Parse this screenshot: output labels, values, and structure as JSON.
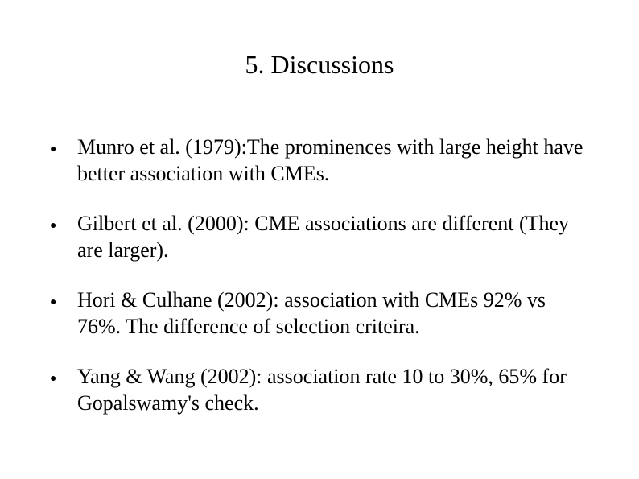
{
  "slide": {
    "title": "5. Discussions",
    "bullets": [
      "Munro et al. (1979):The prominences with large height have better association with CMEs.",
      "Gilbert et al. (2000): CME associations are different (They are larger).",
      "Hori & Culhane (2002): association with CMEs 92% vs 76%. The difference of selection criteira.",
      "Yang & Wang (2002): association rate 10 to 30%, 65% for Gopalswamy's check."
    ]
  },
  "style": {
    "background_color": "#ffffff",
    "text_color": "#000000",
    "font_family": "Times New Roman",
    "title_fontsize": 32,
    "body_fontsize": 26,
    "bullet_marker": "●"
  }
}
